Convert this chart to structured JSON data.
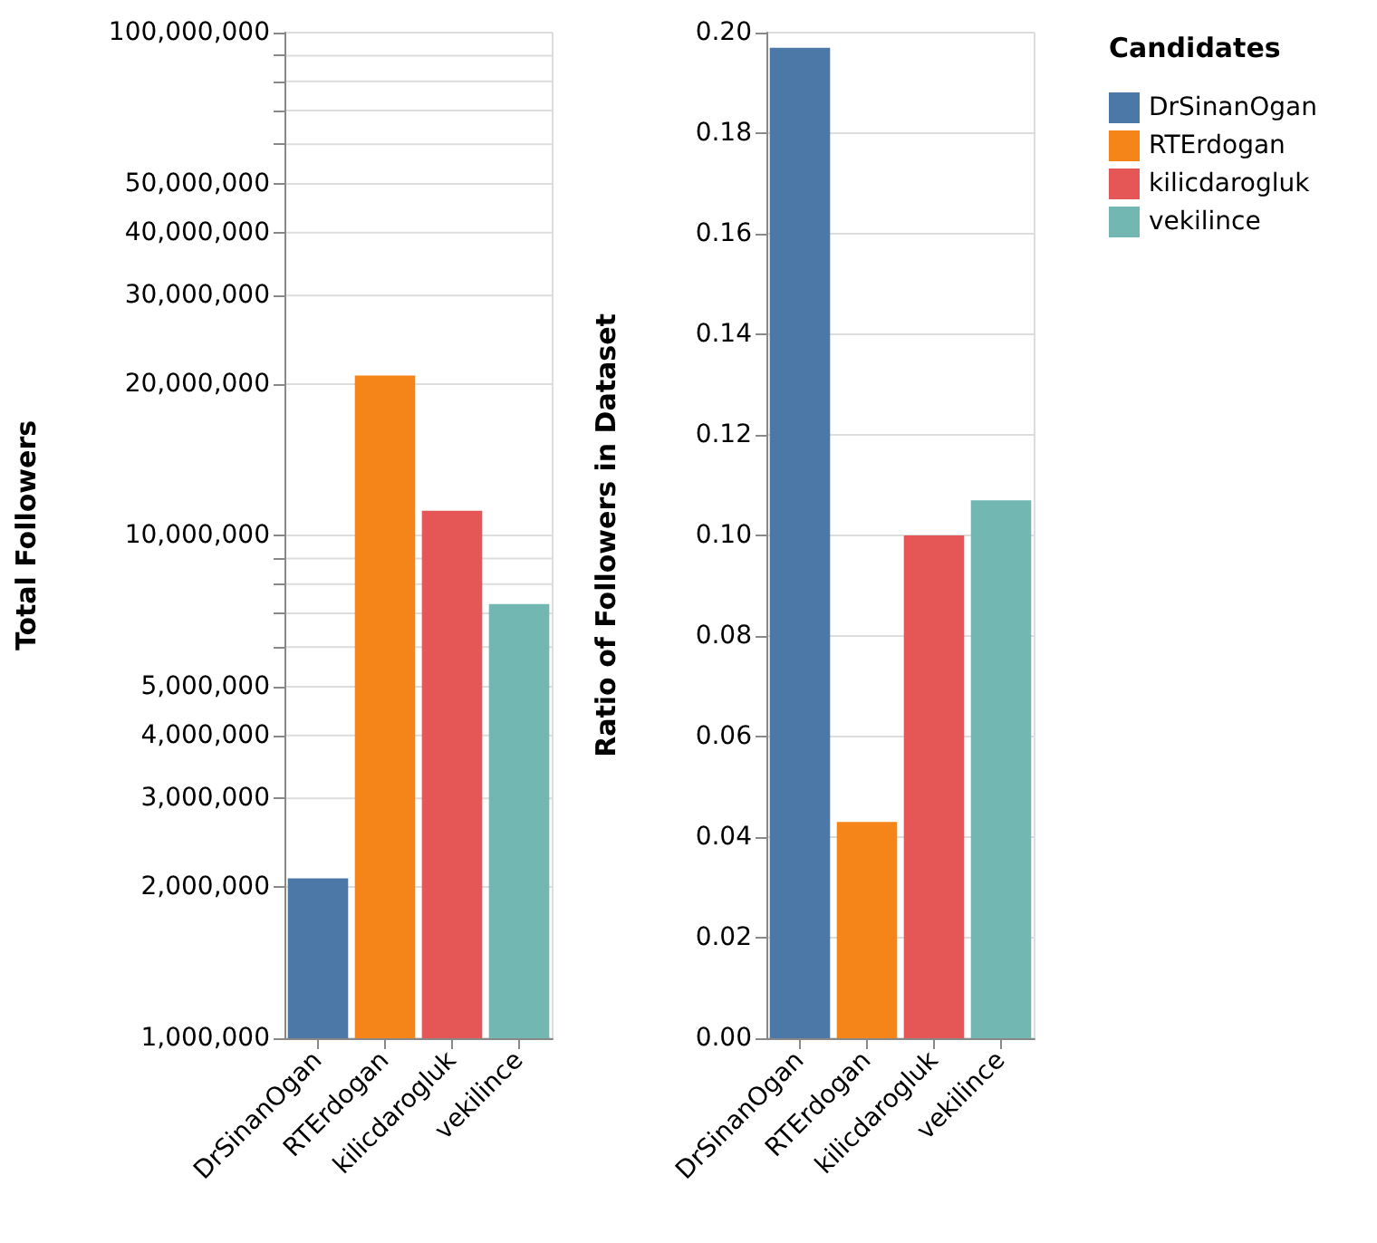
{
  "chart_data": [
    {
      "type": "bar",
      "categories": [
        "DrSinanOgan",
        "RTErdogan",
        "kilicdarogluk",
        "vekilince"
      ],
      "series": [
        {
          "color": "#4c78a8",
          "values": [
            2080000,
            null,
            null,
            null
          ]
        },
        {
          "color": "#f58518",
          "values": [
            null,
            20800000,
            null,
            null
          ]
        },
        {
          "color": "#e45756",
          "values": [
            null,
            null,
            11200000,
            null
          ]
        },
        {
          "color": "#72b7b2",
          "values": [
            null,
            null,
            null,
            7300000
          ]
        }
      ],
      "ylabel": "Total Followers",
      "log": "y",
      "ylim": [
        1000000,
        100000000
      ],
      "yticks": [
        {
          "value": 1000000,
          "label": "1,000,000"
        },
        {
          "value": 2000000,
          "label": "2,000,000"
        },
        {
          "value": 3000000,
          "label": "3,000,000"
        },
        {
          "value": 4000000,
          "label": "4,000,000"
        },
        {
          "value": 5000000,
          "label": "5,000,000"
        },
        {
          "value": 6000000,
          "label": null
        },
        {
          "value": 7000000,
          "label": null
        },
        {
          "value": 8000000,
          "label": null
        },
        {
          "value": 9000000,
          "label": null
        },
        {
          "value": 10000000,
          "label": "10,000,000"
        },
        {
          "value": 20000000,
          "label": "20,000,000"
        },
        {
          "value": 30000000,
          "label": "30,000,000"
        },
        {
          "value": 40000000,
          "label": "40,000,000"
        },
        {
          "value": 50000000,
          "label": "50,000,000"
        },
        {
          "value": 60000000,
          "label": null
        },
        {
          "value": 70000000,
          "label": null
        },
        {
          "value": 80000000,
          "label": null
        },
        {
          "value": 90000000,
          "label": null
        },
        {
          "value": 100000000,
          "label": "100,000,000"
        }
      ],
      "grid": "y"
    },
    {
      "type": "bar",
      "categories": [
        "DrSinanOgan",
        "RTErdogan",
        "kilicdarogluk",
        "vekilince"
      ],
      "series": [
        {
          "name": "DrSinanOgan",
          "color": "#4c78a8",
          "values": [
            0.197,
            null,
            null,
            null
          ]
        },
        {
          "name": "RTErdogan",
          "color": "#f58518",
          "values": [
            null,
            0.043,
            null,
            null
          ]
        },
        {
          "name": "kilicdarogluk",
          "color": "#e45756",
          "values": [
            null,
            null,
            0.1,
            null
          ]
        },
        {
          "name": "vekilince",
          "color": "#72b7b2",
          "values": [
            null,
            null,
            null,
            0.107
          ]
        }
      ],
      "ylabel": "Ratio of Followers in Dataset",
      "ylim": [
        0,
        0.2
      ],
      "yticks": [
        {
          "value": 0,
          "label": "0.00"
        },
        {
          "value": 0.02,
          "label": "0.02"
        },
        {
          "value": 0.04,
          "label": "0.04"
        },
        {
          "value": 0.06,
          "label": "0.06"
        },
        {
          "value": 0.08,
          "label": "0.08"
        },
        {
          "value": 0.1,
          "label": "0.10"
        },
        {
          "value": 0.12,
          "label": "0.12"
        },
        {
          "value": 0.14,
          "label": "0.14"
        },
        {
          "value": 0.16,
          "label": "0.16"
        },
        {
          "value": 0.18,
          "label": "0.18"
        },
        {
          "value": 0.2,
          "label": "0.20"
        }
      ],
      "grid": "y",
      "legend": "right",
      "legend_title": "Candidates"
    }
  ]
}
